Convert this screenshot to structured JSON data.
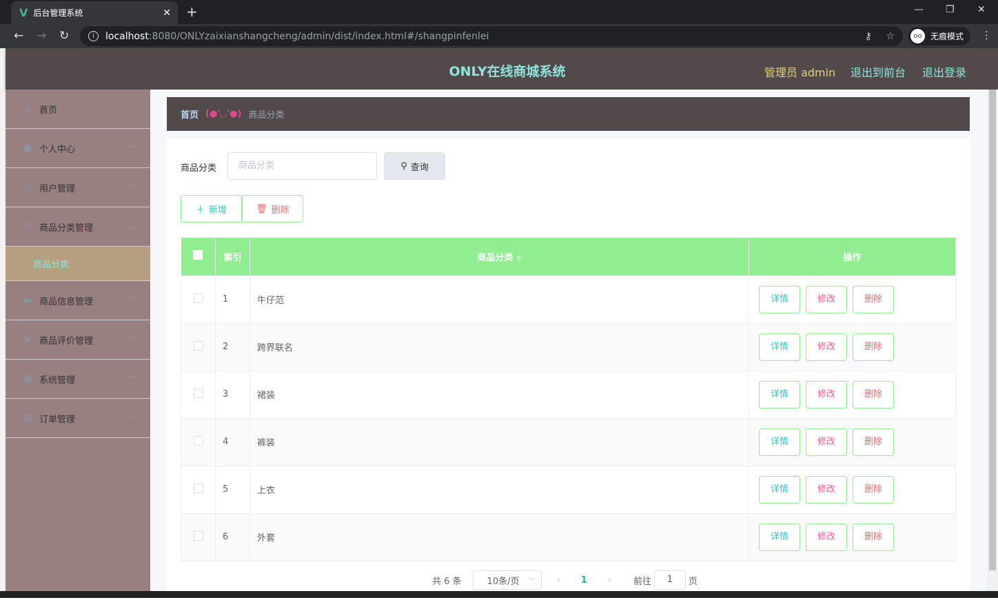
{
  "browser": {
    "tab_title": "后台管理系统",
    "url_host": "localhost",
    "url_rest": ":8080/ONLYzaixianshangcheng/admin/dist/index.html#/shangpinfenlei",
    "incognito_label": "无痕模式"
  },
  "header": {
    "title": "ONLY在线商城系统",
    "admin": "管理员 admin",
    "to_front": "退出到前台",
    "logout": "退出登录"
  },
  "sidebar": {
    "items": [
      {
        "label": "首页",
        "icon": "home-icon"
      },
      {
        "label": "个人中心",
        "icon": "user-icon"
      },
      {
        "label": "用户管理",
        "icon": "compass-icon"
      },
      {
        "label": "商品分类管理",
        "icon": "power-icon",
        "sub": "商品分类"
      },
      {
        "label": "商品信息管理",
        "icon": "monitor-icon"
      },
      {
        "label": "商品评价管理",
        "icon": "send-icon"
      },
      {
        "label": "系统管理",
        "icon": "grid-icon"
      },
      {
        "label": "订单管理",
        "icon": "chart-icon"
      }
    ]
  },
  "breadcrumb": {
    "home": "首页",
    "face": "(●'◡'●)",
    "current": "商品分类"
  },
  "search": {
    "label": "商品分类",
    "placeholder": "商品分类",
    "query": "查询"
  },
  "actions": {
    "add": "新增",
    "delete": "删除"
  },
  "table": {
    "headers": {
      "index": "索引",
      "name": "商品分类",
      "ops": "操作"
    },
    "rows": [
      {
        "i": "1",
        "name": "牛仔范"
      },
      {
        "i": "2",
        "name": "跨界联名"
      },
      {
        "i": "3",
        "name": "裙装"
      },
      {
        "i": "4",
        "name": "裤装"
      },
      {
        "i": "5",
        "name": "上衣"
      },
      {
        "i": "6",
        "name": "外套"
      }
    ],
    "row_buttons": {
      "detail": "详情",
      "edit": "修改",
      "delete": "删除"
    }
  },
  "pagination": {
    "total": "共 6 条",
    "page_size": "10条/页",
    "current": "1",
    "goto_prefix": "前往",
    "goto_value": "1",
    "goto_suffix": "页"
  },
  "colors": {
    "header_bg": "#524a4a",
    "sidebar_bg": "#988080",
    "active_sub_bg": "#b59f80",
    "table_header": "#90ee90",
    "accent_cyan": "#8fe4df"
  }
}
